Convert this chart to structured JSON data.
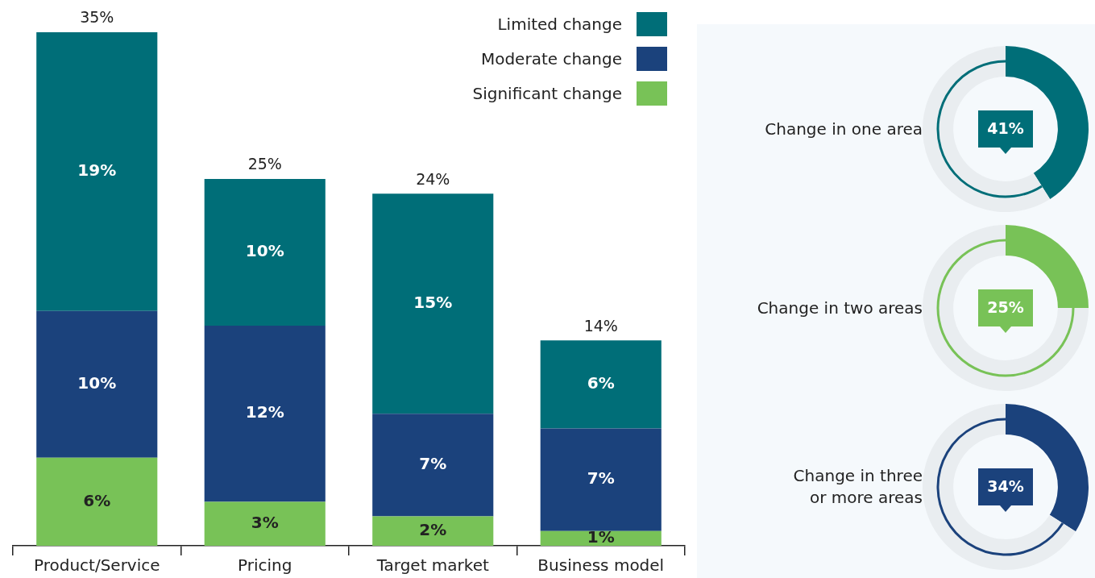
{
  "chart_data": [
    {
      "type": "bar",
      "stacked": true,
      "categories": [
        "Product/Service",
        "Pricing",
        "Target market",
        "Business model"
      ],
      "legend": "top right",
      "totals": [
        "35%",
        "25%",
        "24%",
        "14%"
      ],
      "series": [
        {
          "name": "Significant change",
          "color": "#78c257",
          "values": [
            6,
            3,
            2,
            1
          ],
          "value_labels": [
            "6%",
            "3%",
            "2%",
            "1%"
          ]
        },
        {
          "name": "Moderate change",
          "color": "#1b427c",
          "values": [
            10,
            12,
            7,
            7
          ],
          "value_labels": [
            "10%",
            "12%",
            "7%",
            "7%"
          ]
        },
        {
          "name": "Limited change",
          "color": "#006e78",
          "values": [
            19,
            10,
            15,
            6
          ],
          "value_labels": [
            "19%",
            "10%",
            "15%",
            "6%"
          ]
        }
      ]
    },
    {
      "type": "donut",
      "title": "Change in one area",
      "categories": [
        null,
        null
      ],
      "values": [
        41,
        59
      ],
      "colors": [
        "#006e78",
        "#e9edf0"
      ],
      "value_labels": [
        "41%",
        null
      ]
    },
    {
      "type": "donut",
      "title": "Change in two areas",
      "categories": [
        null,
        null
      ],
      "values": [
        25,
        75
      ],
      "colors": [
        "#78c257",
        "#e9edf0"
      ],
      "value_labels": [
        "25%",
        null
      ]
    },
    {
      "type": "donut",
      "title": "Change in three\nor more areas",
      "categories": [
        null,
        null
      ],
      "values": [
        34,
        66
      ],
      "colors": [
        "#1b427c",
        "#e9edf0"
      ],
      "value_labels": [
        "34%",
        null
      ]
    }
  ]
}
